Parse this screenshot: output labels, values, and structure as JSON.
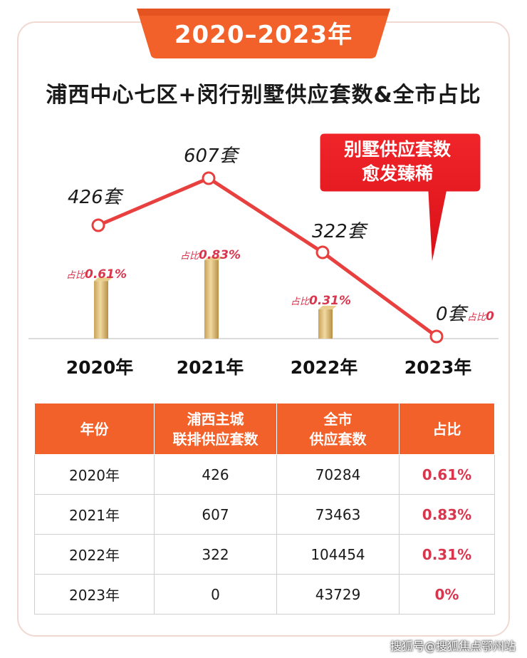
{
  "banner": {
    "text": "2020–2023年"
  },
  "title": "浦西中心七区+闵行别墅供应套数&全市占比",
  "callout": {
    "line1": "别墅供应套数",
    "line2": "愈发臻稀"
  },
  "colors": {
    "accent": "#f2612a",
    "line": "#e8403f",
    "share": "#d9364e",
    "bar": "#d8b46a"
  },
  "chart_data": {
    "type": "line",
    "categories": [
      "2020年",
      "2021年",
      "2022年",
      "2023年"
    ],
    "series": [
      {
        "values": [
          426,
          607,
          322,
          0
        ],
        "point_labels": [
          "426套",
          "607套",
          "322套",
          "0套"
        ]
      },
      {
        "type": "bar",
        "values": [
          0.61,
          0.83,
          0.31,
          0
        ],
        "bar_labels": [
          {
            "prefix": "占比",
            "value": "0.61%"
          },
          {
            "prefix": "占比",
            "value": "0.83%"
          },
          {
            "prefix": "占比",
            "value": "0.31%"
          },
          {
            "prefix": "占比",
            "value": "0"
          }
        ]
      }
    ]
  },
  "table": {
    "headers": [
      {
        "line1": "年份",
        "line2": ""
      },
      {
        "line1": "浦西主城",
        "line2": "联排供应套数"
      },
      {
        "line1": "全市",
        "line2": "供应套数"
      },
      {
        "line1": "占比",
        "line2": ""
      }
    ],
    "rows": [
      [
        "2020年",
        "426",
        "70284",
        "0.61%"
      ],
      [
        "2021年",
        "607",
        "73463",
        "0.83%"
      ],
      [
        "2022年",
        "322",
        "104454",
        "0.31%"
      ],
      [
        "2023年",
        "0",
        "43729",
        "0%"
      ]
    ]
  },
  "watermark": "搜狐号@搜狐焦点鄂州站"
}
